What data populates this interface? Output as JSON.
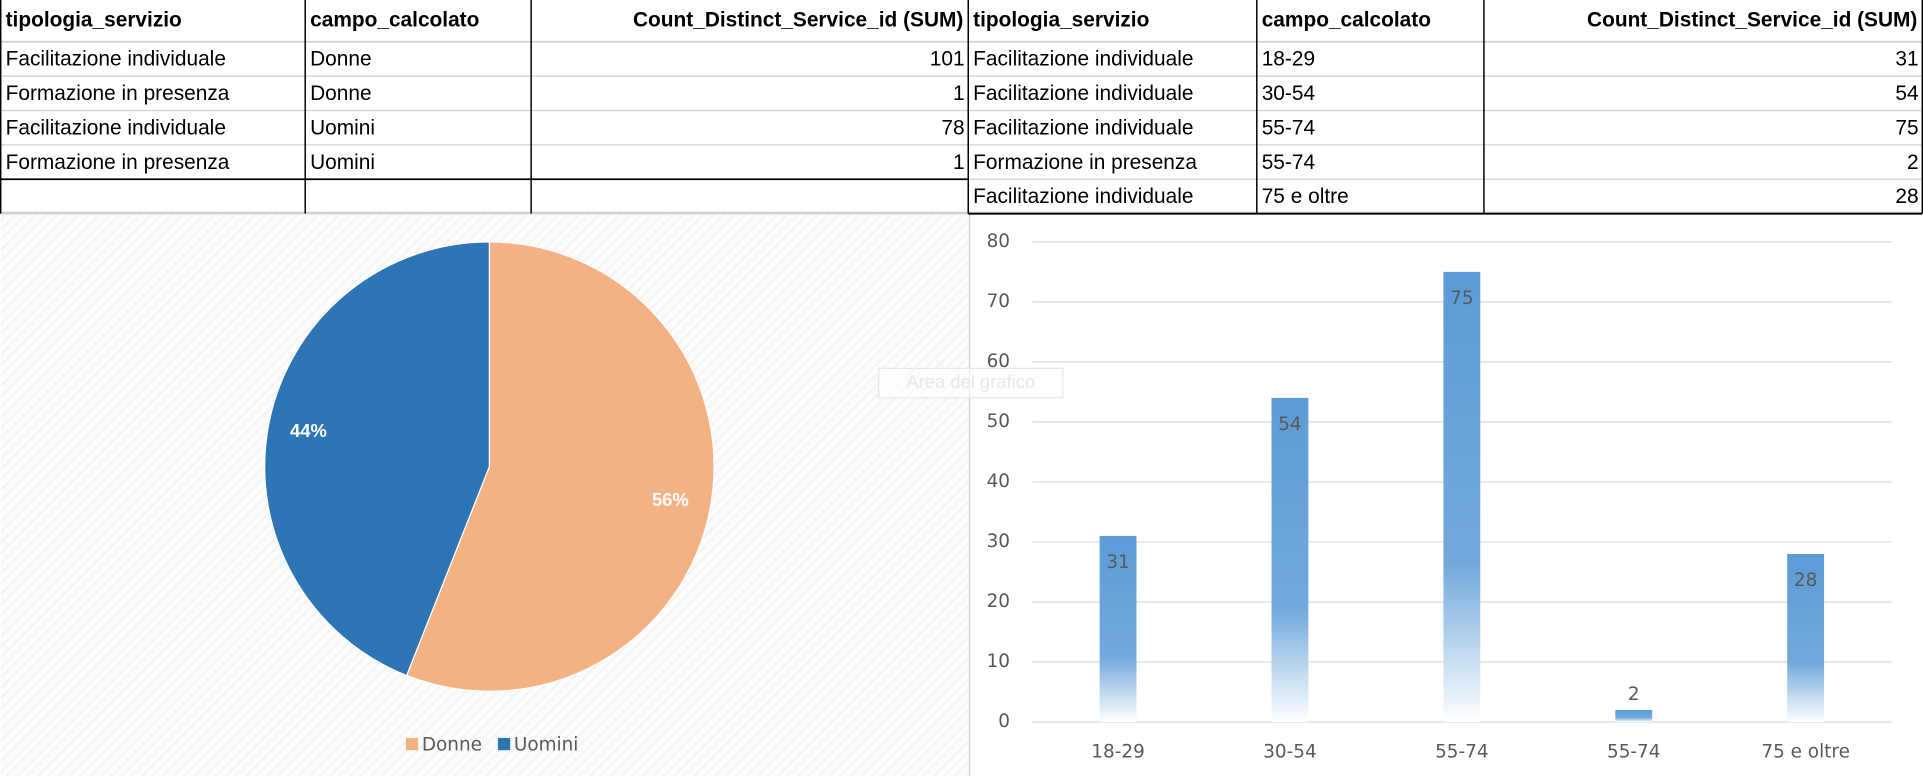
{
  "tables": [
    {
      "header": [
        "tipologia_servizio",
        "campo_calcolato",
        "Count_Distinct_Service_id (SUM)"
      ],
      "rows": [
        [
          "Facilitazione individuale",
          "Donne",
          101
        ],
        [
          "Formazione in presenza",
          "Donne",
          1
        ],
        [
          "Facilitazione individuale",
          "Uomini",
          78
        ],
        [
          "Formazione in presenza",
          "Uomini",
          1
        ]
      ]
    },
    {
      "header": [
        "tipologia_servizio",
        "campo_calcolato",
        "Count_Distinct_Service_id (SUM)"
      ],
      "rows": [
        [
          "Facilitazione individuale",
          "18-29",
          31
        ],
        [
          "Facilitazione individuale",
          "30-54",
          54
        ],
        [
          "Facilitazione individuale",
          "55-74",
          75
        ],
        [
          "Formazione in presenza",
          "55-74",
          2
        ],
        [
          "Facilitazione individuale",
          "75 e oltre",
          28
        ]
      ]
    }
  ],
  "chart_data": [
    {
      "type": "pie",
      "categories": [
        "Donne",
        "Uomini"
      ],
      "values": [
        56,
        44
      ],
      "value_labels": [
        "56%",
        "44%"
      ],
      "colors": [
        "#f4b183",
        "#2e75b6"
      ],
      "legend": "bottom"
    },
    {
      "type": "bar",
      "categories": [
        "18-29",
        "30-54",
        "55-74",
        "55-74",
        "75 e oltre"
      ],
      "values": [
        31,
        54,
        75,
        2,
        28
      ],
      "color": "#5b9bd5",
      "ylim": [
        0,
        80
      ],
      "yticks": [
        0,
        10,
        20,
        30,
        40,
        50,
        60,
        70,
        80
      ],
      "grid": true,
      "tooltip": "Area del grafico"
    }
  ]
}
